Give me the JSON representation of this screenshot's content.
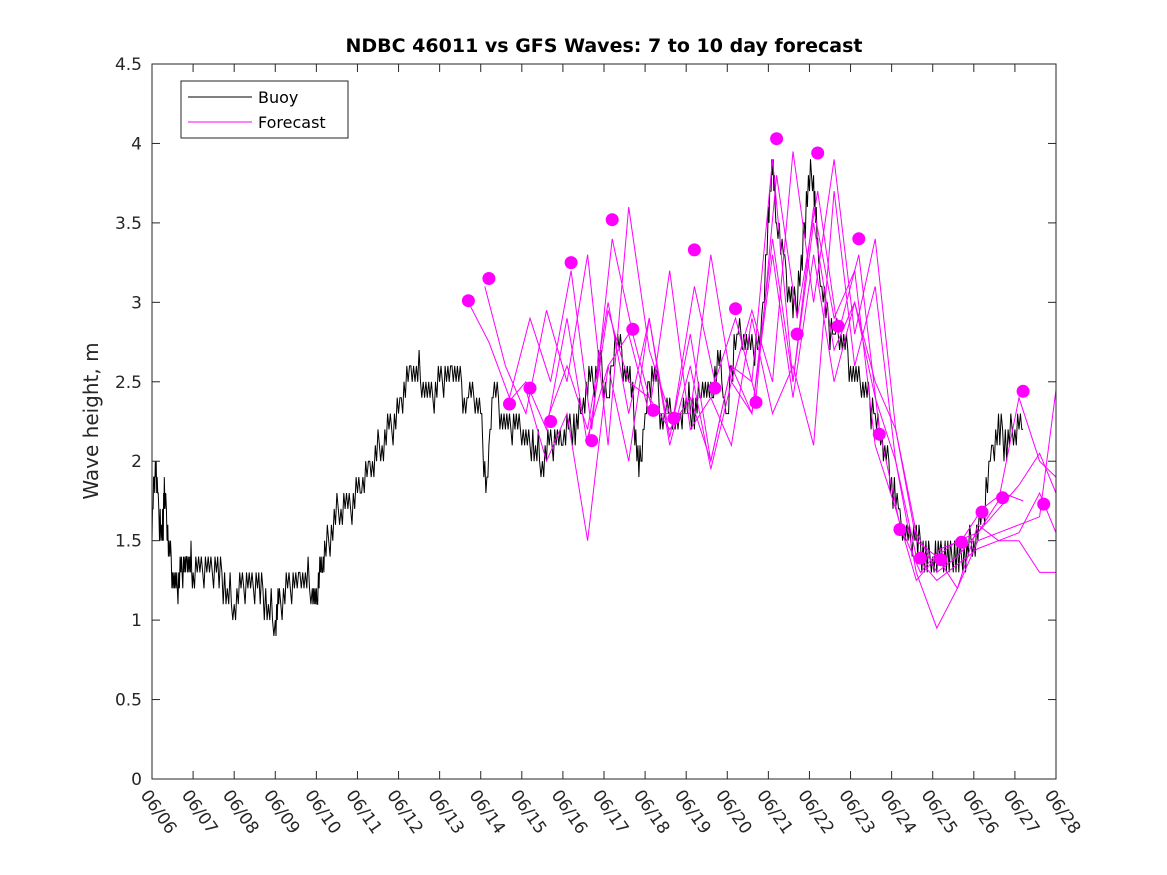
{
  "chart_data": {
    "type": "line",
    "title": "NDBC 46011 vs GFS Waves: 7 to 10 day forecast",
    "ylabel": "Wave height, m",
    "xlabel": "",
    "xlim_days": [
      6,
      28
    ],
    "ylim": [
      0,
      4.5
    ],
    "yticks": [
      "0",
      "0.5",
      "1",
      "1.5",
      "2",
      "2.5",
      "3",
      "3.5",
      "4",
      "4.5"
    ],
    "xticks": [
      "06/06",
      "06/07",
      "06/08",
      "06/09",
      "06/10",
      "06/11",
      "06/12",
      "06/13",
      "06/14",
      "06/15",
      "06/16",
      "06/17",
      "06/18",
      "06/19",
      "06/20",
      "06/21",
      "06/22",
      "06/23",
      "06/24",
      "06/25",
      "06/26",
      "06/27",
      "06/28"
    ],
    "legend": {
      "placement": "top-left"
    },
    "colors": {
      "buoy": "#000000",
      "forecast": "#ff00ff"
    },
    "series": [
      {
        "name": "Buoy",
        "x": [
          6.0,
          6.08,
          6.15,
          6.25,
          6.3,
          6.4,
          6.5,
          6.6,
          6.7,
          6.8,
          6.9,
          7.0,
          7.2,
          7.4,
          7.6,
          7.8,
          8.0,
          8.2,
          8.4,
          8.6,
          8.8,
          9.0,
          9.1,
          9.3,
          9.5,
          9.7,
          9.9,
          10.0,
          10.1,
          10.2,
          10.4,
          10.6,
          10.8,
          11.0,
          11.2,
          11.4,
          11.6,
          11.8,
          12.0,
          12.2,
          12.4,
          12.6,
          12.8,
          13.0,
          13.2,
          13.4,
          13.6,
          13.8,
          14.0,
          14.15,
          14.3,
          14.5,
          14.7,
          14.9,
          15.1,
          15.3,
          15.5,
          15.7,
          15.9,
          16.1,
          16.3,
          16.5,
          16.7,
          16.9,
          17.1,
          17.3,
          17.5,
          17.7,
          17.85,
          18.0,
          18.2,
          18.4,
          18.6,
          18.8,
          19.0,
          19.2,
          19.4,
          19.6,
          19.8,
          20.0,
          20.2,
          20.4,
          20.6,
          20.8,
          21.0,
          21.1,
          21.2,
          21.4,
          21.6,
          21.8,
          21.95,
          22.1,
          22.2,
          22.4,
          22.6,
          22.8,
          23.0,
          23.2,
          23.4,
          23.6,
          23.8,
          24.0,
          24.2,
          24.4,
          24.6,
          24.8,
          25.0,
          25.2,
          25.4,
          25.6,
          25.8,
          26.0,
          26.2,
          26.4,
          26.6,
          26.8,
          27.0,
          27.2
        ],
        "values": [
          1.6,
          2.0,
          1.7,
          1.5,
          1.8,
          1.5,
          1.3,
          1.2,
          1.3,
          1.3,
          1.4,
          1.3,
          1.3,
          1.3,
          1.3,
          1.2,
          1.1,
          1.2,
          1.2,
          1.2,
          1.1,
          1.0,
          1.1,
          1.2,
          1.2,
          1.3,
          1.2,
          1.1,
          1.3,
          1.4,
          1.6,
          1.7,
          1.7,
          1.8,
          1.9,
          2.0,
          2.1,
          2.2,
          2.3,
          2.5,
          2.6,
          2.5,
          2.4,
          2.5,
          2.5,
          2.6,
          2.4,
          2.4,
          2.3,
          1.8,
          2.5,
          2.3,
          2.2,
          2.2,
          2.1,
          2.1,
          2.0,
          2.1,
          2.1,
          2.2,
          2.2,
          2.4,
          2.5,
          2.6,
          2.4,
          2.8,
          2.6,
          2.4,
          1.9,
          2.3,
          2.6,
          2.3,
          2.3,
          2.2,
          2.4,
          2.3,
          2.5,
          2.4,
          2.6,
          2.3,
          2.8,
          2.8,
          2.7,
          2.7,
          3.5,
          3.9,
          3.5,
          3.2,
          2.9,
          3.2,
          3.7,
          3.8,
          3.3,
          2.9,
          2.8,
          2.8,
          2.6,
          2.5,
          2.4,
          2.3,
          2.1,
          1.9,
          1.6,
          1.5,
          1.5,
          1.4,
          1.4,
          1.4,
          1.4,
          1.4,
          1.4,
          1.5,
          1.6,
          2.0,
          2.2,
          2.1,
          2.2,
          2.2
        ]
      }
    ],
    "forecast": {
      "name": "Forecast",
      "runs": [
        {
          "x": [
            13.7,
            14.2,
            14.7,
            15.2,
            15.7,
            16.2,
            16.7,
            17.2,
            17.7,
            18.2,
            18.7,
            19.2,
            19.7,
            20.2,
            20.7,
            21.2,
            21.7,
            22.2,
            22.7,
            23.2,
            23.7,
            24.2,
            24.7,
            25.2,
            25.7,
            26.2,
            26.7,
            27.2
          ],
          "values": [
            3.0,
            2.75,
            2.4,
            2.9,
            2.5,
            3.2,
            2.2,
            3.4,
            2.8,
            2.3,
            2.3,
            3.1,
            2.5,
            2.9,
            2.4,
            3.8,
            2.9,
            3.7,
            2.8,
            3.3,
            2.2,
            1.6,
            1.3,
            1.45,
            1.5,
            1.7,
            1.8,
            1.75
          ]
        },
        {
          "x": [
            14.1,
            14.6,
            15.1,
            15.6,
            16.1,
            16.6,
            17.1,
            17.6,
            18.1,
            18.6,
            19.1,
            19.6,
            20.1,
            20.6,
            21.1,
            21.6,
            22.1,
            22.6,
            23.1,
            23.6,
            24.1,
            24.6,
            25.1,
            25.6,
            26.1,
            26.6,
            27.1,
            27.6,
            28.0
          ],
          "values": [
            3.1,
            2.6,
            2.3,
            2.95,
            2.5,
            3.3,
            2.1,
            3.6,
            2.7,
            2.3,
            2.3,
            3.3,
            2.5,
            2.95,
            2.5,
            3.95,
            3.0,
            3.9,
            2.8,
            3.4,
            2.2,
            1.55,
            1.3,
            1.4,
            1.55,
            1.75,
            2.4,
            2.0,
            1.9
          ]
        },
        {
          "x": [
            14.6,
            15.1,
            15.6,
            16.1,
            16.6,
            17.1,
            17.6,
            18.1,
            18.6,
            19.1,
            19.6,
            20.1,
            20.6,
            21.1,
            21.6,
            22.1,
            22.6,
            23.1,
            23.6,
            24.1,
            24.6,
            25.1,
            25.6,
            26.1,
            26.6,
            27.1,
            27.6,
            28.0
          ],
          "values": [
            2.35,
            2.5,
            2.2,
            2.9,
            2.1,
            2.95,
            2.5,
            2.4,
            2.2,
            2.4,
            2.0,
            2.6,
            2.5,
            3.9,
            2.5,
            3.6,
            2.9,
            3.2,
            2.1,
            1.7,
            1.25,
            1.4,
            1.2,
            1.6,
            1.5,
            1.5,
            1.3,
            1.3
          ]
        },
        {
          "x": [
            15.1,
            15.6,
            16.1,
            16.6,
            17.1,
            17.6,
            18.1,
            18.6,
            19.1,
            19.6,
            20.1,
            20.6,
            21.1,
            21.6,
            22.1,
            22.6,
            23.1,
            23.6,
            24.1,
            24.6,
            25.1,
            25.6,
            26.1,
            26.6,
            27.1,
            27.6,
            28.0
          ],
          "values": [
            2.45,
            2.0,
            2.3,
            1.5,
            2.6,
            2.8,
            2.3,
            3.2,
            2.2,
            2.4,
            2.1,
            2.9,
            2.3,
            2.6,
            2.1,
            3.7,
            2.6,
            3.1,
            2.0,
            1.3,
            0.95,
            1.2,
            1.5,
            1.55,
            1.6,
            1.65,
            2.45
          ]
        },
        {
          "x": [
            15.6,
            16.1,
            16.6,
            17.1,
            17.6,
            18.1,
            18.6,
            19.1,
            19.6,
            20.1,
            20.6,
            21.1,
            21.6,
            22.1,
            22.6,
            23.1,
            23.6,
            24.1,
            24.6,
            25.1,
            25.6,
            26.1,
            26.6,
            27.1,
            27.6,
            28.0
          ],
          "values": [
            2.25,
            2.6,
            2.2,
            3.0,
            2.3,
            2.9,
            2.1,
            2.6,
            1.95,
            2.5,
            2.3,
            3.3,
            2.4,
            3.3,
            2.5,
            3.0,
            2.4,
            2.0,
            1.4,
            1.25,
            1.35,
            1.45,
            1.5,
            1.55,
            1.8,
            1.55
          ]
        },
        {
          "x": [
            16.6,
            17.1,
            17.6,
            18.1,
            18.6,
            19.1,
            19.6,
            20.1,
            20.6,
            21.1,
            21.6,
            22.1,
            22.6,
            23.1,
            23.6,
            24.1,
            24.6,
            25.1,
            25.6,
            26.1,
            26.6,
            27.1,
            27.6,
            28.0
          ],
          "values": [
            2.15,
            2.6,
            2.0,
            2.9,
            2.15,
            2.8,
            2.0,
            2.6,
            2.3,
            3.4,
            2.5,
            3.5,
            2.7,
            3.0,
            2.5,
            2.2,
            1.5,
            1.4,
            1.5,
            1.55,
            1.7,
            1.85,
            2.05,
            1.8
          ]
        }
      ],
      "markers": {
        "x": [
          13.7,
          14.2,
          14.7,
          15.2,
          15.7,
          16.2,
          16.7,
          17.2,
          17.7,
          18.2,
          18.7,
          19.2,
          19.7,
          20.2,
          20.7,
          21.2,
          21.7,
          22.2,
          22.7,
          23.2,
          23.7,
          24.2,
          24.7,
          25.2,
          25.7,
          26.2,
          26.7,
          27.2,
          27.7
        ],
        "values": [
          3.01,
          3.15,
          2.36,
          2.46,
          2.25,
          3.25,
          2.13,
          3.52,
          2.83,
          2.32,
          2.27,
          3.33,
          2.46,
          2.96,
          2.37,
          4.03,
          2.8,
          3.94,
          2.85,
          3.4,
          2.17,
          1.57,
          1.39,
          1.38,
          1.49,
          1.68,
          1.77,
          2.44,
          1.73
        ]
      }
    }
  }
}
